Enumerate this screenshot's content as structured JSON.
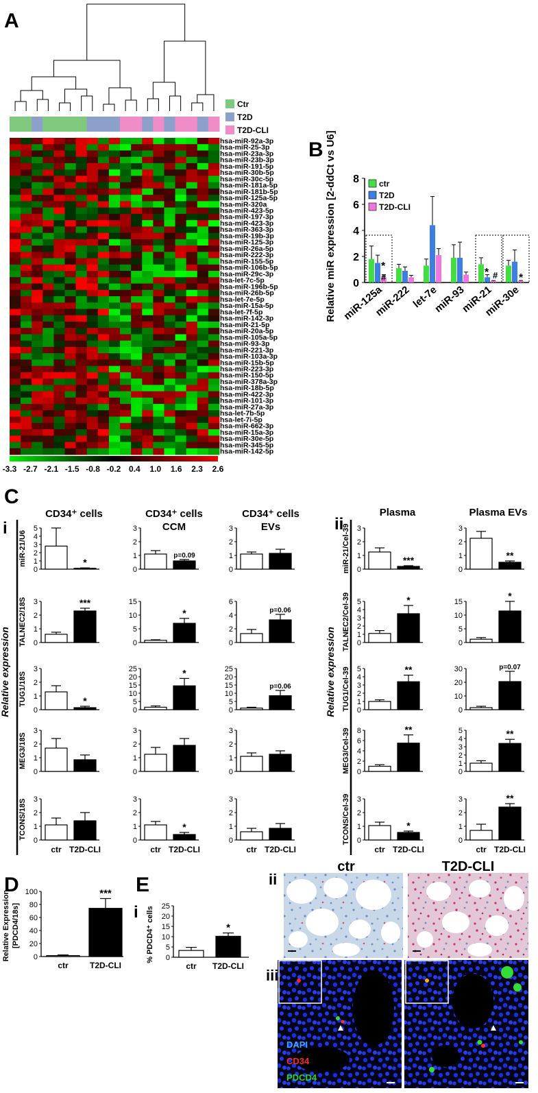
{
  "panels": {
    "A": "A",
    "B": "B",
    "C": "C",
    "D": "D",
    "E": "E",
    "ci": "i",
    "cii": "ii",
    "ei": "i",
    "eii": "ii",
    "eiii": "iii"
  },
  "colors": {
    "ctr": "#7fc97f",
    "t2d": "#8da0cb",
    "t2dcli": "#f08cc8",
    "green_bar": "#44dd44",
    "blue_bar": "#3d7fe0",
    "pink_bar": "#ee77dd"
  },
  "heatmap": {
    "group_legend": [
      "Ctr",
      "T2D",
      "T2D-CLI"
    ],
    "group_bar": [
      "ctr",
      "ctr",
      "t2d",
      "ctr",
      "ctr",
      "ctr",
      "ctr",
      "t2d",
      "t2d",
      "t2d",
      "t2dcli",
      "t2dcli",
      "t2d",
      "t2dcli",
      "t2d",
      "t2dcli",
      "t2dcli",
      "t2d",
      "t2dcli"
    ],
    "genes": [
      "hsa-miR-92a-3p",
      "hsa-miR-25-3p",
      "hsa-miR-23a-3p",
      "hsa-miR-23b-3p",
      "hsa-miR-191-5p",
      "hsa-miR-30b-5p",
      "hsa-miR-30c-5p",
      "hsa-miR-181a-5p",
      "hsa-miR-181b-5p",
      "hsa-miR-125a-5p",
      "hsa-miR-320a",
      "hsa-miR-423-5p",
      "hsa-miR-197-3p",
      "hsa-miR-423-3p",
      "hsa-miR-363-3p",
      "hsa-miR-19b-3p",
      "hsa-miR-125-3p",
      "hsa-miR-26a-5p",
      "hsa-miR-222-3p",
      "hsa-miR-155-5p",
      "hsa-miR-106b-5p",
      "hsa-miR-29c-3p",
      "hsa-let-7c-5p",
      "hsa-miR-196b-5p",
      "hsa-miR-26b-5p",
      "hsa-let-7e-5p",
      "hsa-miR-15a-5p",
      "hsa-let-7f-5p",
      "hsa-miR-142-3p",
      "hsa-miR-21-5p",
      "hsa-miR-20a-5p",
      "hsa-miR-105a-5p",
      "hsa-miR-93-3p",
      "hsa-miR-221-3p",
      "hsa-miR-103a-3p",
      "hsa-miR-15b-5p",
      "hsa-miR-223-3p",
      "hsa-miR-150-5p",
      "hsa-miR-378a-3p",
      "hsa-miR-18b-5p",
      "hsa-miR-422-3p",
      "hsa-miR-101-3p",
      "hsa-miR-27a-3p",
      "hsa-let-7b-5p",
      "hsa-let-7i-5p",
      "hsa-miR-662-3p",
      "hsa-miR-15a-3p",
      "hsa-miR-30e-5p",
      "hsa-miR-345-5p",
      "hsa-miR-142-5p"
    ],
    "scale_ticks": [
      "-3.3",
      "-2.7",
      "-2.1",
      "-1.5",
      "-0.8",
      "-0.2",
      "0.4",
      "1.0",
      "1.6",
      "2.3",
      "2.6"
    ]
  },
  "chart_data": [
    {
      "type": "bar",
      "panel": "B",
      "categories": [
        "miR-125a",
        "miR-222",
        "let-7e",
        "miR-93",
        "miR-21",
        "miR-30e"
      ],
      "ylabel": "Relative miR expression [2-ddCt vs U6]",
      "ylim": [
        0,
        8
      ],
      "yticks": [
        "0",
        "2",
        "4",
        "6",
        "8"
      ],
      "series": [
        {
          "name": "ctr",
          "color": "#44dd44",
          "values": [
            1.8,
            1.1,
            1.3,
            1.9,
            1.4,
            1.3
          ],
          "err": [
            1.0,
            0.3,
            0.5,
            1.0,
            0.5,
            0.4
          ]
        },
        {
          "name": "T2D",
          "color": "#3d7fe0",
          "values": [
            1.5,
            0.9,
            4.4,
            1.9,
            0.4,
            1.6
          ],
          "err": [
            0.6,
            0.3,
            2.2,
            1.2,
            0.2,
            0.9
          ]
        },
        {
          "name": "T2D-CLI",
          "color": "#ee77dd",
          "values": [
            0.4,
            0.4,
            2.1,
            0.6,
            0.1,
            0.1
          ],
          "err": [
            0.2,
            0.15,
            0.5,
            0.2,
            0.05,
            0.05
          ]
        }
      ],
      "annotations": [
        "*",
        "#",
        "*",
        "#",
        "*"
      ]
    },
    {
      "type": "bar",
      "panel": "C",
      "categories": [
        "ctr",
        "T2D-CLI"
      ],
      "ylabel": "Relative expression",
      "column_titles": [
        "CD34⁺ cells",
        "CD34⁺ cells CCM",
        "CD34⁺ cells EVs",
        "Plasma",
        "Plasma EVs"
      ],
      "row_labels_left": [
        "miR-21/U6",
        "TALNEC2/18S",
        "TUG1/18S",
        "MEG3/18S",
        "TCONS/18S"
      ],
      "row_labels_right": [
        "miR-21/Cel-39",
        "TALNEC2/Cel-39",
        "TUG1/Cel-39",
        "MEG3/Cel-39",
        "TCONS/Cel-39"
      ],
      "grid": [
        [
          {
            "ticks": [
              "0",
              "1",
              "2",
              "3",
              "4",
              "5"
            ],
            "ymax": 5,
            "v": [
              2.8,
              0.1
            ],
            "e": [
              2.2,
              0.05
            ],
            "s": "*"
          },
          {
            "ticks": [
              "0",
              "1",
              "2",
              "3"
            ],
            "ymax": 3,
            "v": [
              1.1,
              0.6
            ],
            "e": [
              0.25,
              0.1
            ],
            "s": "p=0.09"
          },
          {
            "ticks": [
              "0",
              "1",
              "2",
              "3"
            ],
            "ymax": 3,
            "v": [
              1.1,
              1.15
            ],
            "e": [
              0.15,
              0.3
            ],
            "s": ""
          },
          {
            "ticks": [
              "0",
              "1",
              "2",
              "3"
            ],
            "ymax": 3,
            "v": [
              1.25,
              0.2
            ],
            "e": [
              0.3,
              0.05
            ],
            "s": "***"
          },
          {
            "ticks": [
              "0",
              "1",
              "2",
              "3"
            ],
            "ymax": 3,
            "v": [
              2.25,
              0.5
            ],
            "e": [
              0.5,
              0.1
            ],
            "s": "**"
          }
        ],
        [
          {
            "ticks": [
              "0",
              "1",
              "2",
              "3"
            ],
            "ymax": 3,
            "v": [
              0.6,
              2.3
            ],
            "e": [
              0.15,
              0.2
            ],
            "s": "***"
          },
          {
            "ticks": [
              "0",
              "5",
              "10",
              "15"
            ],
            "ymax": 15,
            "v": [
              0.8,
              7
            ],
            "e": [
              0.2,
              1.8
            ],
            "s": "*"
          },
          {
            "ticks": [
              "0",
              "2",
              "4",
              "6"
            ],
            "ymax": 6,
            "v": [
              1.3,
              3.3
            ],
            "e": [
              0.6,
              0.8
            ],
            "s": "p=0.06"
          },
          {
            "ticks": [
              "0",
              "1",
              "2",
              "3",
              "4",
              "5"
            ],
            "ymax": 5,
            "v": [
              1.1,
              3.5
            ],
            "e": [
              0.35,
              1.0
            ],
            "s": "*"
          },
          {
            "ticks": [
              "0",
              "5",
              "10",
              "15"
            ],
            "ymax": 15,
            "v": [
              1.2,
              11.5
            ],
            "e": [
              0.6,
              3.5
            ],
            "s": "*"
          }
        ],
        [
          {
            "ticks": [
              "0",
              "1",
              "2",
              "3"
            ],
            "ymax": 3,
            "v": [
              1.3,
              0.15
            ],
            "e": [
              0.45,
              0.1
            ],
            "s": "*"
          },
          {
            "ticks": [
              "0",
              "5",
              "10",
              "15",
              "20",
              "25"
            ],
            "ymax": 25,
            "v": [
              1.5,
              14.5
            ],
            "e": [
              0.8,
              4.5
            ],
            "s": "*"
          },
          {
            "ticks": [
              "0",
              "5",
              "10",
              "15",
              "20",
              "25"
            ],
            "ymax": 25,
            "v": [
              1.0,
              8.5
            ],
            "e": [
              0.5,
              3.2
            ],
            "s": "p=0.06"
          },
          {
            "ticks": [
              "0",
              "1",
              "2",
              "3",
              "4",
              "5"
            ],
            "ymax": 5,
            "v": [
              1.0,
              3.4
            ],
            "e": [
              0.2,
              0.8
            ],
            "s": "**"
          },
          {
            "ticks": [
              "0",
              "10",
              "20",
              "30"
            ],
            "ymax": 30,
            "v": [
              1.5,
              20.5
            ],
            "e": [
              1.0,
              7.5
            ],
            "s": "p=0.07"
          }
        ],
        [
          {
            "ticks": [
              "0",
              "1",
              "2",
              "3"
            ],
            "ymax": 3,
            "v": [
              1.7,
              0.85
            ],
            "e": [
              0.7,
              0.35
            ],
            "s": ""
          },
          {
            "ticks": [
              "0",
              "1",
              "2",
              "3"
            ],
            "ymax": 3,
            "v": [
              1.25,
              1.9
            ],
            "e": [
              0.5,
              0.5
            ],
            "s": ""
          },
          {
            "ticks": [
              "0",
              "1",
              "2",
              "3"
            ],
            "ymax": 3,
            "v": [
              1.1,
              1.25
            ],
            "e": [
              0.25,
              0.25
            ],
            "s": ""
          },
          {
            "ticks": [
              "0",
              "2",
              "4",
              "6",
              "8"
            ],
            "ymax": 8,
            "v": [
              1.0,
              5.5
            ],
            "e": [
              0.3,
              1.6
            ],
            "s": "**"
          },
          {
            "ticks": [
              "0",
              "1",
              "2",
              "3",
              "4",
              "5"
            ],
            "ymax": 5,
            "v": [
              1.0,
              3.4
            ],
            "e": [
              0.3,
              0.5
            ],
            "s": "**"
          }
        ],
        [
          {
            "ticks": [
              "0",
              "1",
              "2",
              "3"
            ],
            "ymax": 3,
            "v": [
              1.1,
              1.4
            ],
            "e": [
              0.5,
              0.6
            ],
            "s": ""
          },
          {
            "ticks": [
              "0",
              "1",
              "2",
              "3"
            ],
            "ymax": 3,
            "v": [
              1.1,
              0.4
            ],
            "e": [
              0.25,
              0.15
            ],
            "s": "*"
          },
          {
            "ticks": [
              "0",
              "1",
              "2",
              "3"
            ],
            "ymax": 3,
            "v": [
              0.6,
              0.85
            ],
            "e": [
              0.25,
              0.35
            ],
            "s": ""
          },
          {
            "ticks": [
              "0",
              "1",
              "2",
              "3"
            ],
            "ymax": 3,
            "v": [
              1.05,
              0.55
            ],
            "e": [
              0.25,
              0.1
            ],
            "s": "*"
          },
          {
            "ticks": [
              "0",
              "1",
              "2",
              "3"
            ],
            "ymax": 3,
            "v": [
              0.7,
              2.4
            ],
            "e": [
              0.45,
              0.25
            ],
            "s": "**"
          }
        ]
      ]
    },
    {
      "type": "bar",
      "panel": "D",
      "categories": [
        "ctr",
        "T2D-CLI"
      ],
      "ylabel": "Relative Expression [PDCD4/18s]",
      "yticks": [
        "0",
        "20",
        "40",
        "60",
        "80",
        "100"
      ],
      "ylim": [
        0,
        100
      ],
      "values": [
        1.5,
        74
      ],
      "err": [
        1,
        15
      ],
      "sig": "***"
    },
    {
      "type": "bar",
      "panel": "E",
      "categories": [
        "ctr",
        "T2D-CLI"
      ],
      "ylabel": "% PDCD4⁺ cells",
      "yticks": [
        "0",
        "5",
        "10",
        "15",
        "20",
        "25"
      ],
      "ylim": [
        0,
        25
      ],
      "values": [
        3.3,
        10.2
      ],
      "err": [
        1.5,
        1.6
      ],
      "sig": "*"
    }
  ],
  "micro": {
    "ctr": "ctr",
    "cli": "T2D-CLI",
    "dapi": "DAPI",
    "cd34": "CD34",
    "pdcd4": "PDCD4"
  }
}
